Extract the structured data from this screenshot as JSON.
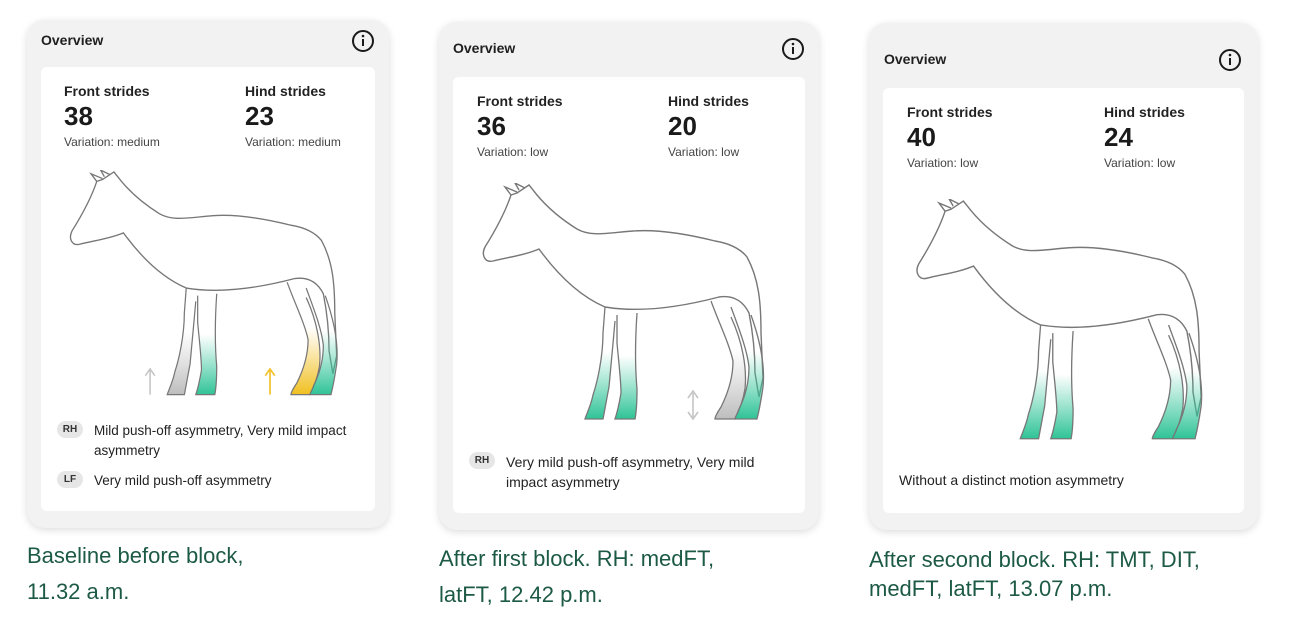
{
  "panels": [
    {
      "title": "Overview",
      "front_label": "Front strides",
      "front_value": "38",
      "front_variation": "Variation: medium",
      "hind_label": "Hind strides",
      "hind_value": "23",
      "hind_variation": "Variation: medium",
      "findings": [
        {
          "badge": "RH",
          "text": "Mild push-off asymmetry, Very mild impact asymmetry"
        },
        {
          "badge": "LF",
          "text": "Very mild push-off asymmetry"
        }
      ],
      "caption_line1": "Baseline before block,",
      "caption_line2": "11.32 a.m."
    },
    {
      "title": "Overview",
      "front_label": "Front strides",
      "front_value": "36",
      "front_variation": "Variation: low",
      "hind_label": "Hind strides",
      "hind_value": "20",
      "hind_variation": "Variation: low",
      "findings": [
        {
          "badge": "RH",
          "text": "Very mild push-off asymmetry, Very mild impact asymmetry"
        }
      ],
      "caption_line1": "After first block. RH: medFT,",
      "caption_line2": "latFT, 12.42 p.m."
    },
    {
      "title": "Overview",
      "front_label": "Front strides",
      "front_value": "40",
      "front_variation": "Variation: low",
      "hind_label": "Hind strides",
      "hind_value": "24",
      "hind_variation": "Variation: low",
      "status_text": "Without a distinct motion asymmetry",
      "caption_line1": "After second block. RH: TMT, DIT,",
      "caption_line2": "medFT, latFT, 13.07 p.m."
    }
  ],
  "colors": {
    "green": "#3cc9a0",
    "yellow": "#f2c230",
    "gray": "#bdbdbd",
    "caption": "#1d5a45"
  },
  "icons": [
    "info-icon",
    "arrow-up-icon",
    "arrow-updown-icon"
  ]
}
